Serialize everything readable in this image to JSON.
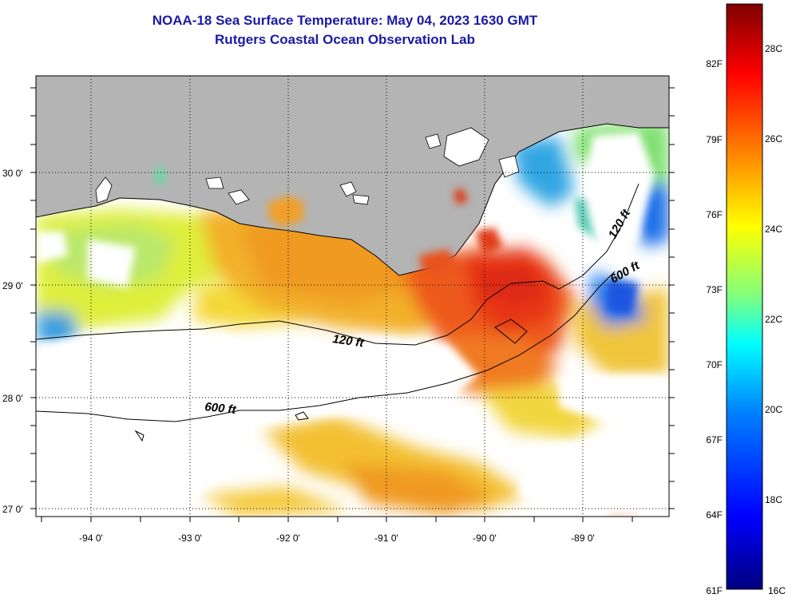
{
  "title": "NOAA-18 Sea Surface Temperature:  May 04, 2023 1630 GMT",
  "subtitle": "Rutgers Coastal Ocean Observation Lab",
  "map": {
    "lat_labels": [
      "30 0'",
      "29 0'",
      "28 0'",
      "27 0'"
    ],
    "lon_labels": [
      "-94 0'",
      "-93 0'",
      "-92 0'",
      "-91 0'",
      "-90 0'",
      "-89 0'"
    ],
    "contour_labels": [
      "120 ft",
      "600 ft",
      "120 ft",
      "600 ft"
    ],
    "land_color": "#b4b4b4",
    "cloud_color": "#ffffff"
  },
  "colorbar": {
    "fahrenheit_labels": [
      "82F",
      "79F",
      "76F",
      "73F",
      "70F",
      "67F",
      "64F",
      "61F"
    ],
    "celsius_labels": [
      "28C",
      "26C",
      "24C",
      "22C",
      "20C",
      "18C",
      "16C"
    ],
    "colors": [
      "#00007f",
      "#0000ff",
      "#007fff",
      "#00ffff",
      "#7fff7f",
      "#ffff00",
      "#ff7f00",
      "#ff0000",
      "#7f0000"
    ]
  }
}
